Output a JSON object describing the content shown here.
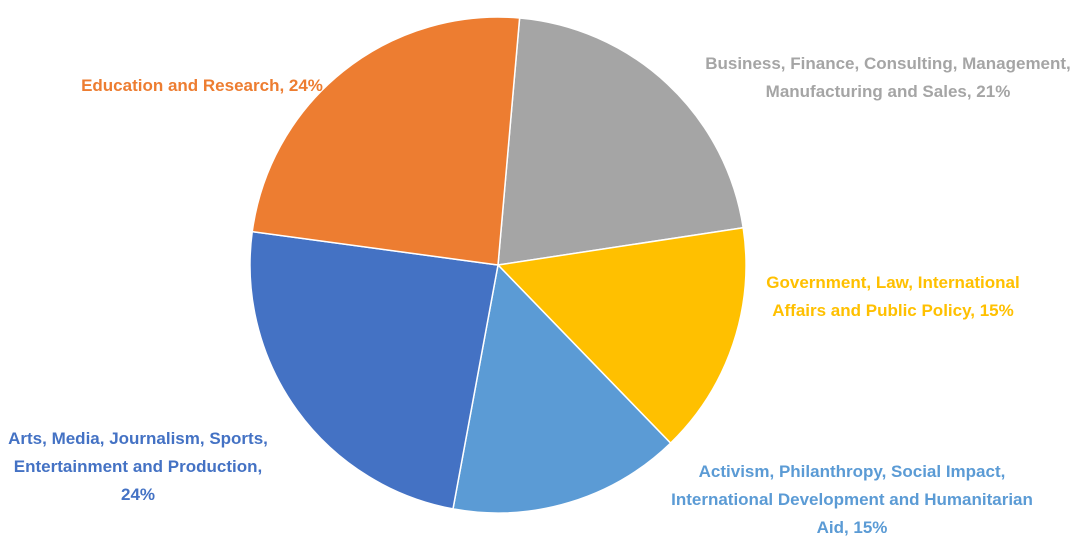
{
  "chart_data": {
    "type": "pie",
    "values": [
      21,
      15,
      15,
      24,
      24
    ],
    "value_labels": [
      "Business, Finance, Consulting, Management, Manufacturing and Sales, 21%",
      "Government, Law, International Affairs and Public Policy, 15%",
      "Activism, Philanthropy, Social Impact, International Development and Humanitarian Aid, 15%",
      "Arts, Media, Journalism, Sports, Entertainment and Production, 24%",
      "Education and Research, 24%"
    ],
    "colors": [
      "#a5a5a5",
      "#ffc000",
      "#5b9bd5",
      "#4472c4",
      "#ed7d31"
    ]
  }
}
